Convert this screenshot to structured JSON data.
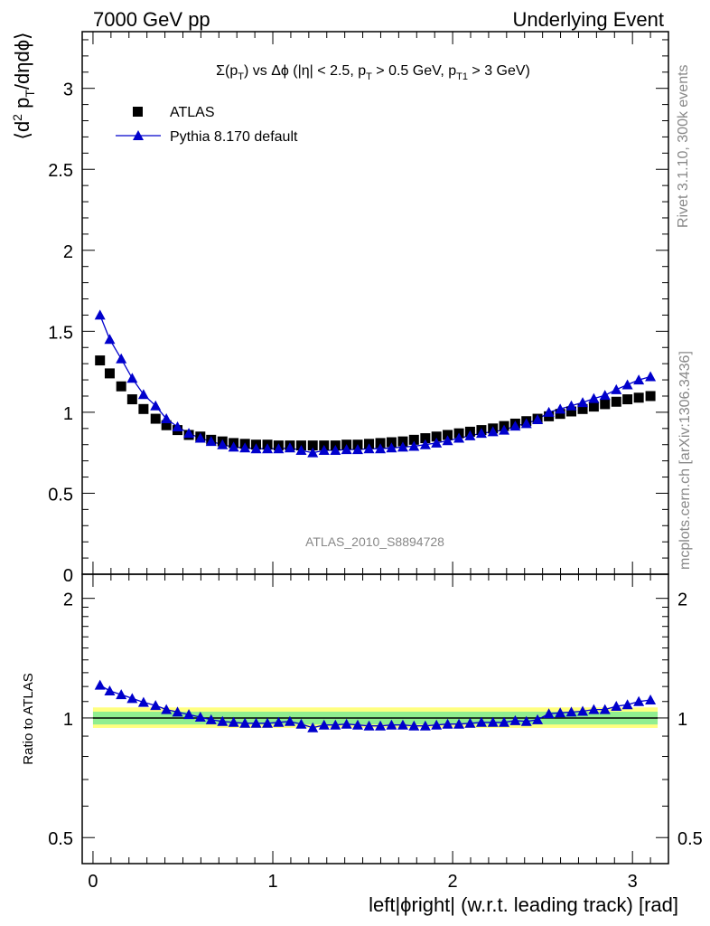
{
  "header": {
    "left": "7000 GeV pp",
    "right": "Underlying Event"
  },
  "side": {
    "rivet": "Rivet 3.1.10,  300k events",
    "mcplots": "mcplots.cern.ch [arXiv:1306.3436]"
  },
  "analysis_tag": "ATLAS_2010_S8894728",
  "colors": {
    "mc": "#0000cc",
    "data": "#000000",
    "band_inner": "#90ee90",
    "band_outer": "#ffff80"
  },
  "chart_data": [
    {
      "type": "scatter",
      "title": "Σ(p_T) vs Δφ (|η| < 2.5, p_T > 0.5 GeV, p_T1 > 3 GeV)",
      "ylabel": "⟨d² p_T/dηdφ⟩",
      "ylim": [
        0,
        3.35
      ],
      "yticks": [
        0,
        0.5,
        1,
        1.5,
        2,
        2.5,
        3
      ],
      "ytick_labels": [
        "0",
        "0.5",
        "1",
        "1.5",
        "2",
        "2.5",
        "3"
      ],
      "xlim": [
        -0.06,
        3.2
      ],
      "legend_position": "top-left",
      "x": [
        0.039,
        0.093,
        0.157,
        0.218,
        0.281,
        0.348,
        0.408,
        0.47,
        0.533,
        0.597,
        0.657,
        0.72,
        0.782,
        0.845,
        0.907,
        0.97,
        1.032,
        1.095,
        1.158,
        1.222,
        1.285,
        1.348,
        1.41,
        1.472,
        1.535,
        1.598,
        1.66,
        1.723,
        1.785,
        1.848,
        1.91,
        1.972,
        2.035,
        2.097,
        2.16,
        2.224,
        2.286,
        2.348,
        2.41,
        2.472,
        2.535,
        2.598,
        2.66,
        2.723,
        2.785,
        2.847,
        2.91,
        2.972,
        3.035,
        3.1
      ],
      "series": [
        {
          "name": "ATLAS",
          "marker": "square",
          "values": [
            1.32,
            1.24,
            1.16,
            1.08,
            1.02,
            0.96,
            0.92,
            0.89,
            0.86,
            0.85,
            0.83,
            0.82,
            0.81,
            0.805,
            0.8,
            0.8,
            0.795,
            0.795,
            0.795,
            0.795,
            0.795,
            0.795,
            0.8,
            0.8,
            0.805,
            0.81,
            0.815,
            0.82,
            0.83,
            0.84,
            0.85,
            0.86,
            0.87,
            0.88,
            0.89,
            0.9,
            0.915,
            0.93,
            0.945,
            0.96,
            0.975,
            0.99,
            1.005,
            1.02,
            1.035,
            1.05,
            1.065,
            1.08,
            1.09,
            1.1
          ]
        },
        {
          "name": "Pythia 8.170 default",
          "marker": "triangle",
          "values": [
            1.6,
            1.45,
            1.33,
            1.21,
            1.11,
            1.04,
            0.96,
            0.91,
            0.87,
            0.84,
            0.82,
            0.8,
            0.785,
            0.78,
            0.775,
            0.775,
            0.775,
            0.78,
            0.765,
            0.75,
            0.765,
            0.765,
            0.77,
            0.77,
            0.775,
            0.775,
            0.78,
            0.785,
            0.79,
            0.8,
            0.81,
            0.825,
            0.84,
            0.855,
            0.87,
            0.88,
            0.89,
            0.915,
            0.93,
            0.955,
            1.0,
            1.02,
            1.04,
            1.06,
            1.085,
            1.105,
            1.14,
            1.17,
            1.2,
            1.22
          ]
        }
      ]
    },
    {
      "type": "scatter",
      "ylabel": "Ratio to ATLAS",
      "xlabel": "left|ϕright| (w.r.t. leading track) [rad]",
      "log_scale_y": true,
      "ylim": [
        0.43,
        2.3
      ],
      "yticks": [
        0.5,
        1,
        2
      ],
      "ytick_labels": [
        "0.5",
        "1",
        "2"
      ],
      "xlim": [
        -0.06,
        3.2
      ],
      "xticks": [
        0,
        1,
        2,
        3
      ],
      "xtick_labels": [
        "0",
        "1",
        "2",
        "3"
      ],
      "band_inner": [
        0.963,
        1.037
      ],
      "band_outer": [
        0.944,
        1.063
      ],
      "series": [
        {
          "name": "Pythia 8.170 default",
          "marker": "triangle",
          "values": [
            1.21,
            1.17,
            1.145,
            1.12,
            1.095,
            1.075,
            1.05,
            1.035,
            1.02,
            1.005,
            0.99,
            0.98,
            0.975,
            0.97,
            0.97,
            0.97,
            0.975,
            0.98,
            0.965,
            0.945,
            0.96,
            0.96,
            0.965,
            0.96,
            0.955,
            0.955,
            0.96,
            0.96,
            0.955,
            0.955,
            0.96,
            0.965,
            0.965,
            0.97,
            0.975,
            0.975,
            0.975,
            0.985,
            0.98,
            0.99,
            1.025,
            1.03,
            1.035,
            1.04,
            1.05,
            1.05,
            1.07,
            1.08,
            1.1,
            1.11
          ]
        }
      ]
    }
  ]
}
